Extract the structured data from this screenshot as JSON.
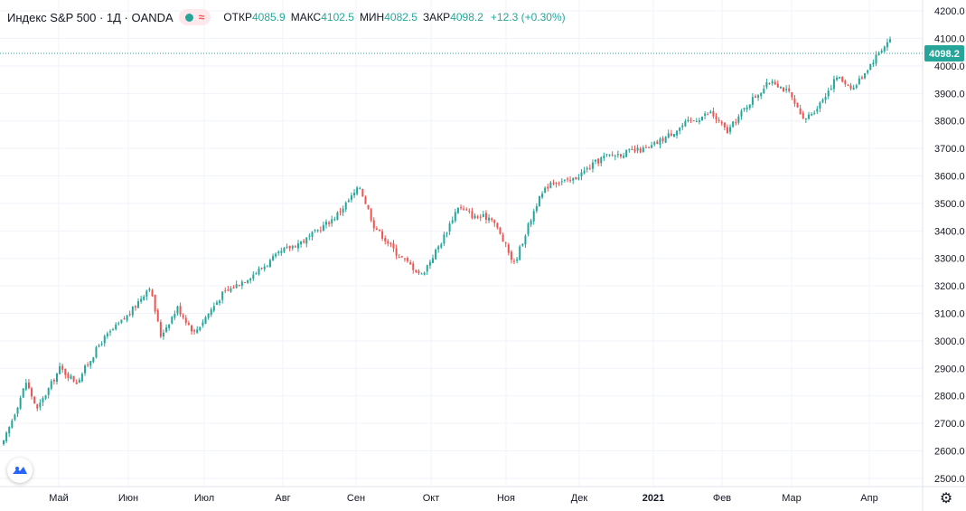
{
  "legend": {
    "title": "Индекс S&P 500 · 1Д · OANDA",
    "open_label": "ОТКР",
    "open_value": "4085.9",
    "high_label": "МАКС",
    "high_value": "4102.5",
    "low_label": "МИН",
    "low_value": "4082.5",
    "close_label": "ЗАКР",
    "close_value": "4098.2",
    "change": "+12.3 (+0.30%)"
  },
  "colors": {
    "up": "#26a69a",
    "down": "#ef5350",
    "grid": "#f0f3fa",
    "text": "#131722"
  },
  "icons": {
    "settings": "gear-icon",
    "logo": "tradingview-logo-icon",
    "status": "status-dot-icon",
    "indicator": "wave-icon"
  },
  "chart_data": {
    "type": "candlestick",
    "y_ticks": [
      "4200.0",
      "4100.0",
      "4000.0",
      "3900.0",
      "3800.0",
      "3700.0",
      "3600.0",
      "3500.0",
      "3400.0",
      "3300.0",
      "3200.0",
      "3100.0",
      "3000.0",
      "2900.0",
      "2800.0",
      "2700.0",
      "2600.0",
      "2500.0"
    ],
    "ylim": [
      2470,
      4240
    ],
    "x_labels": [
      "Май",
      "Июн",
      "Июл",
      "Авг",
      "Сен",
      "Окт",
      "Ноя",
      "Дек",
      "2021",
      "Фев",
      "Мар",
      "Апр"
    ],
    "last_price": "4098.2",
    "grid": true,
    "anchors": [
      {
        "i": 0,
        "v": 2630
      },
      {
        "i": 8,
        "v": 2850
      },
      {
        "i": 12,
        "v": 2750
      },
      {
        "i": 20,
        "v": 2900
      },
      {
        "i": 26,
        "v": 2850
      },
      {
        "i": 35,
        "v": 3000
      },
      {
        "i": 45,
        "v": 3100
      },
      {
        "i": 52,
        "v": 3200
      },
      {
        "i": 56,
        "v": 3020
      },
      {
        "i": 62,
        "v": 3120
      },
      {
        "i": 68,
        "v": 3030
      },
      {
        "i": 78,
        "v": 3170
      },
      {
        "i": 90,
        "v": 3250
      },
      {
        "i": 100,
        "v": 3330
      },
      {
        "i": 108,
        "v": 3370
      },
      {
        "i": 118,
        "v": 3450
      },
      {
        "i": 127,
        "v": 3560
      },
      {
        "i": 132,
        "v": 3420
      },
      {
        "i": 140,
        "v": 3320
      },
      {
        "i": 149,
        "v": 3240
      },
      {
        "i": 156,
        "v": 3360
      },
      {
        "i": 162,
        "v": 3490
      },
      {
        "i": 168,
        "v": 3450
      },
      {
        "i": 174,
        "v": 3450
      },
      {
        "i": 182,
        "v": 3280
      },
      {
        "i": 190,
        "v": 3500
      },
      {
        "i": 195,
        "v": 3580
      },
      {
        "i": 202,
        "v": 3580
      },
      {
        "i": 214,
        "v": 3670
      },
      {
        "i": 230,
        "v": 3700
      },
      {
        "i": 243,
        "v": 3790
      },
      {
        "i": 252,
        "v": 3830
      },
      {
        "i": 258,
        "v": 3760
      },
      {
        "i": 266,
        "v": 3870
      },
      {
        "i": 274,
        "v": 3950
      },
      {
        "i": 280,
        "v": 3900
      },
      {
        "i": 285,
        "v": 3800
      },
      {
        "i": 290,
        "v": 3850
      },
      {
        "i": 297,
        "v": 3960
      },
      {
        "i": 303,
        "v": 3920
      },
      {
        "i": 312,
        "v": 4050
      },
      {
        "i": 316,
        "v": 4098
      }
    ]
  }
}
